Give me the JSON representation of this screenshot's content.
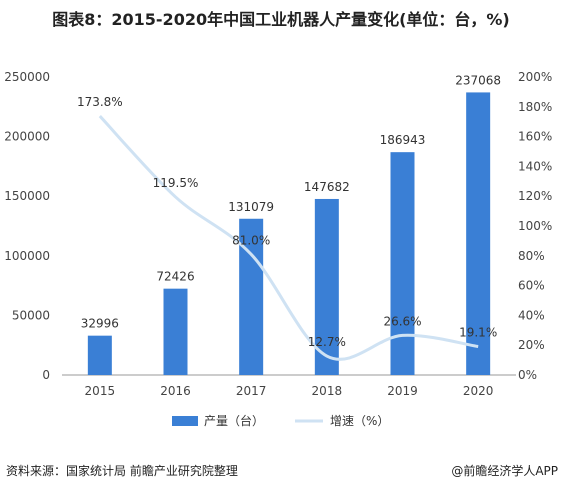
{
  "title": "图表8：2015-2020年中国工业机器人产量变化(单位：台，%)",
  "source": "资料来源：国家统计局 前瞻产业研究院整理",
  "credit": "@前瞻经济学人APP",
  "colors": {
    "bar": "#3a7fd5",
    "line": "#cfe2f3",
    "axis": "#999999",
    "text": "#333333"
  },
  "chart_data": {
    "type": "bar",
    "categories": [
      "2015",
      "2016",
      "2017",
      "2018",
      "2019",
      "2020"
    ],
    "series": [
      {
        "name": "产量（台）",
        "type": "bar",
        "axis": "left",
        "values": [
          32996,
          72426,
          131079,
          147682,
          186943,
          237068
        ],
        "labels": [
          "32996",
          "72426",
          "131079",
          "147682",
          "186943",
          "237068"
        ]
      },
      {
        "name": "增速（%）",
        "type": "line",
        "axis": "right",
        "values": [
          173.8,
          119.5,
          81.0,
          12.7,
          26.6,
          19.1
        ],
        "labels": [
          "173.8%",
          "119.5%",
          "81.0%",
          "12.7%",
          "26.6%",
          "19.1%"
        ]
      }
    ],
    "y_left": {
      "range": [
        0,
        250000
      ],
      "ticks": [
        "0",
        "50000",
        "100000",
        "150000",
        "200000",
        "250000"
      ]
    },
    "y_right": {
      "range": [
        0,
        200
      ],
      "ticks": [
        "0%",
        "20%",
        "40%",
        "60%",
        "80%",
        "100%",
        "120%",
        "140%",
        "160%",
        "180%",
        "200%"
      ]
    },
    "legend": [
      "产量（台）",
      "增速（%）"
    ],
    "legend_position": "bottom",
    "grid": false
  }
}
